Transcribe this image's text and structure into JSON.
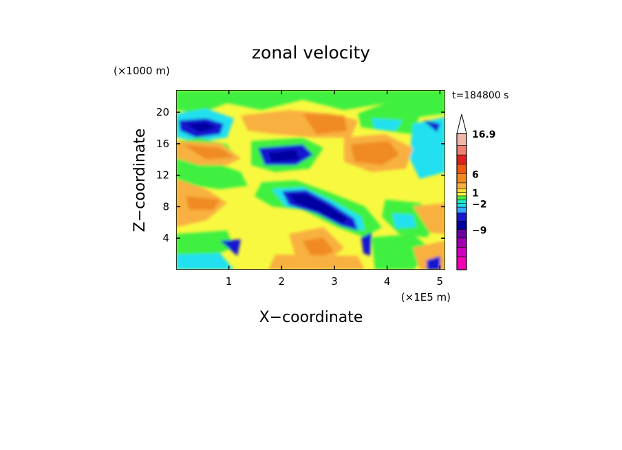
{
  "chart_data": {
    "type": "heatmap",
    "title": "zonal velocity",
    "xlabel": "X−coordinate",
    "ylabel": "Z−coordinate",
    "x_unit": "(×1E5 m)",
    "y_unit": "(×1000 m)",
    "time_label": "t=184800 s",
    "xlim": [
      0,
      5.1
    ],
    "ylim": [
      0,
      22.8
    ],
    "x_ticks": [
      "1",
      "2",
      "3",
      "4",
      "5"
    ],
    "y_ticks": [
      "4",
      "8",
      "12",
      "16",
      "20"
    ],
    "colorbar": {
      "labels": [
        "16.9",
        "6",
        "1",
        "−2",
        "−9"
      ],
      "extend_top": true,
      "colors": [
        "#f0b8a8",
        "#f08070",
        "#e02020",
        "#f05a10",
        "#f08a20",
        "#f8b040",
        "#f8d838",
        "#f8f840",
        "#40f040",
        "#20e8c0",
        "#20e0f0",
        "#3aa8ff",
        "#1818d0",
        "#0000a0",
        "#6a00a0",
        "#a000b0",
        "#d000c0",
        "#f000b0"
      ]
    },
    "grid": false,
    "legend": "colorbar-right"
  }
}
